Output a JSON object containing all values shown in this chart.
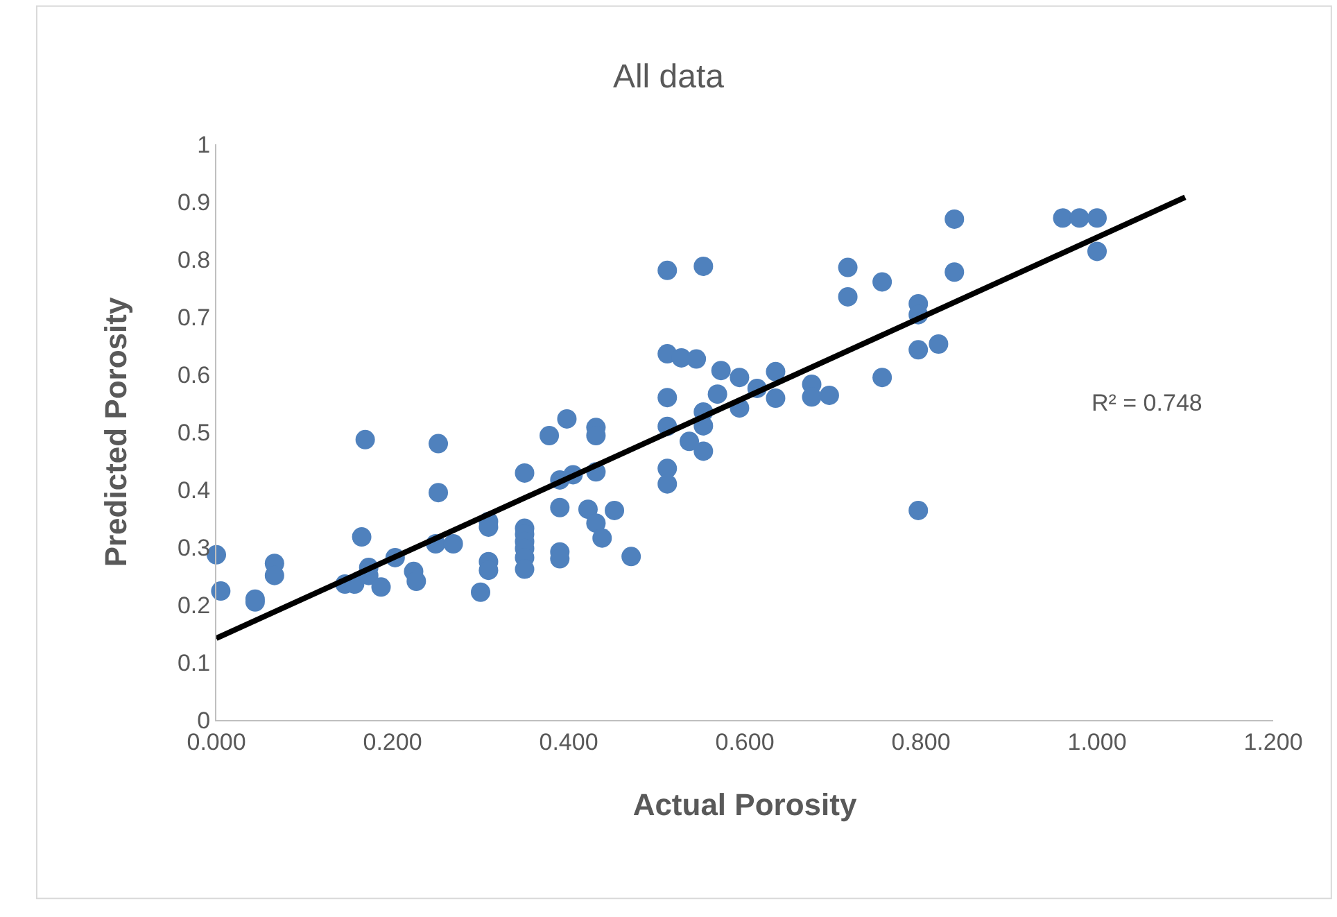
{
  "chart_data": {
    "type": "scatter",
    "title": "All data",
    "xlabel": "Actual Porosity",
    "ylabel": "Predicted Porosity",
    "xlim": [
      0,
      1.2
    ],
    "xticks": [
      {
        "value": 0,
        "label": "0.000"
      },
      {
        "value": 0.2,
        "label": "0.200"
      },
      {
        "value": 0.4,
        "label": "0.400"
      },
      {
        "value": 0.6,
        "label": "0.600"
      },
      {
        "value": 0.8,
        "label": "0.800"
      },
      {
        "value": 1.0,
        "label": "1.000"
      },
      {
        "value": 1.2,
        "label": "1.200"
      }
    ],
    "ylim": [
      0,
      1
    ],
    "yticks": [
      0,
      0.1,
      0.2,
      0.3,
      0.4,
      0.5,
      0.6,
      0.7,
      0.8,
      0.9,
      1
    ],
    "grid": false,
    "legend": false,
    "annotations": [
      "R² = 0.748"
    ],
    "series": [
      {
        "marker": "circle",
        "color": "#4f81bd",
        "x": [
          0.0,
          0.005,
          0.044,
          0.044,
          0.066,
          0.066,
          0.169,
          0.165,
          0.146,
          0.157,
          0.173,
          0.173,
          0.187,
          0.203,
          0.224,
          0.227,
          0.252,
          0.252,
          0.249,
          0.269,
          0.3,
          0.309,
          0.309,
          0.309,
          0.309,
          0.35,
          0.35,
          0.35,
          0.35,
          0.35,
          0.35,
          0.35,
          0.378,
          0.398,
          0.39,
          0.405,
          0.39,
          0.39,
          0.39,
          0.431,
          0.431,
          0.431,
          0.422,
          0.431,
          0.438,
          0.452,
          0.471,
          0.512,
          0.512,
          0.512,
          0.512,
          0.512,
          0.512,
          0.528,
          0.545,
          0.553,
          0.537,
          0.553,
          0.553,
          0.553,
          0.569,
          0.573,
          0.594,
          0.594,
          0.614,
          0.635,
          0.635,
          0.676,
          0.676,
          0.696,
          0.717,
          0.717,
          0.756,
          0.756,
          0.797,
          0.797,
          0.797,
          0.82,
          0.797,
          0.838,
          0.838,
          0.961,
          0.98,
          1.0,
          1.0
        ],
        "values": [
          0.287,
          0.224,
          0.21,
          0.205,
          0.272,
          0.251,
          0.487,
          0.318,
          0.236,
          0.236,
          0.265,
          0.251,
          0.231,
          0.282,
          0.258,
          0.241,
          0.48,
          0.395,
          0.306,
          0.306,
          0.222,
          0.345,
          0.335,
          0.275,
          0.26,
          0.429,
          0.333,
          0.323,
          0.31,
          0.298,
          0.282,
          0.262,
          0.494,
          0.523,
          0.417,
          0.426,
          0.369,
          0.292,
          0.28,
          0.508,
          0.494,
          0.431,
          0.366,
          0.342,
          0.316,
          0.364,
          0.284,
          0.781,
          0.636,
          0.56,
          0.51,
          0.437,
          0.41,
          0.629,
          0.627,
          0.788,
          0.484,
          0.535,
          0.511,
          0.467,
          0.566,
          0.607,
          0.595,
          0.542,
          0.576,
          0.605,
          0.559,
          0.583,
          0.561,
          0.564,
          0.786,
          0.735,
          0.761,
          0.595,
          0.723,
          0.704,
          0.643,
          0.653,
          0.364,
          0.87,
          0.778,
          0.872,
          0.872,
          0.872,
          0.814
        ]
      },
      {
        "type": "line",
        "marker": "none",
        "color": "#000000",
        "x": [
          0,
          1.1
        ],
        "values": [
          0.142,
          0.908
        ]
      }
    ]
  }
}
